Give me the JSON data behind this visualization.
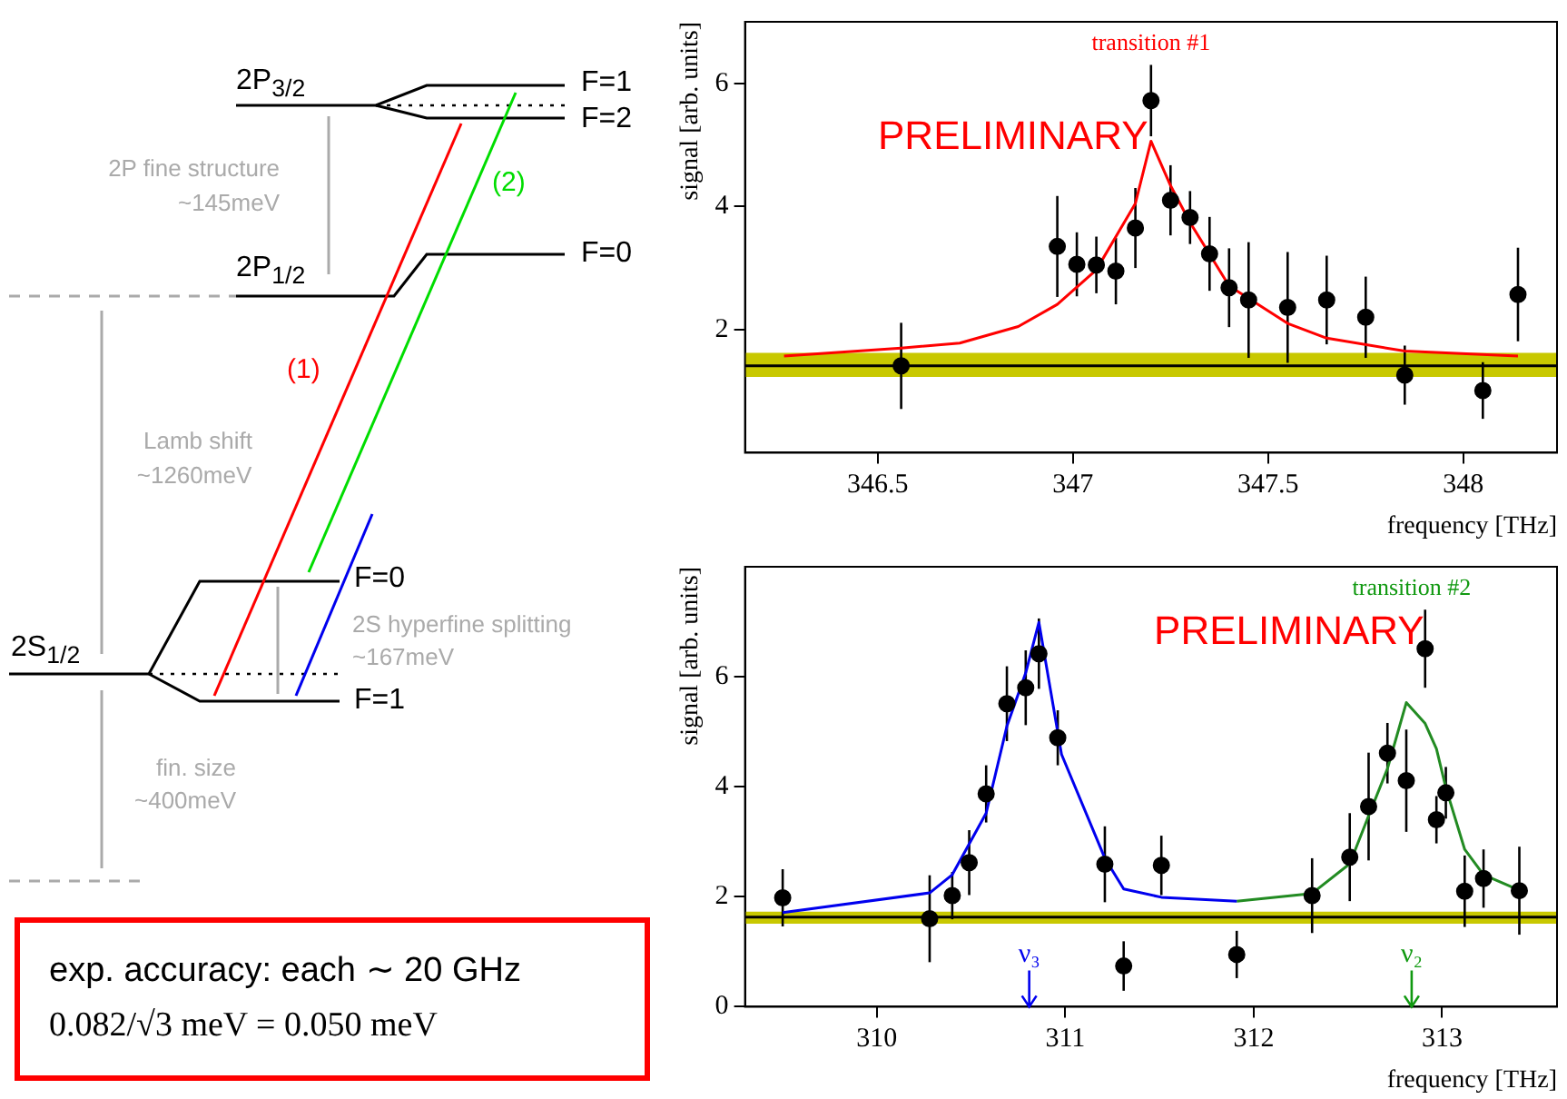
{
  "chart_data": [
    {
      "type": "other",
      "annotations": [
        "2P$_{3/2}$",
        "F=1",
        "F=2",
        "2P fine structure",
        "~145meV",
        "(2)",
        "2P$_{1/2}$",
        "F=0",
        "(1)",
        "Lamb shift",
        "~1260meV",
        "2S$_{1/2}$",
        "F=0",
        "2S hyperfine splitting",
        "~167meV",
        "F=1",
        "fin. size",
        "~400meV"
      ]
    },
    {
      "type": "scatter",
      "xlabel": "frequency [THz]",
      "ylabel": "signal [arb. units]",
      "xlim": [
        346.16,
        348.24
      ],
      "ylim": [
        0,
        7
      ],
      "xticks": [
        346.5,
        347,
        347.5,
        348
      ],
      "yticks": [
        2,
        4,
        6
      ],
      "grid": false,
      "legend": false,
      "annotations": [
        "transition #1",
        "PRELIMINARY"
      ],
      "bands": [
        {
          "axis": "y",
          "from": 1.23,
          "to": 1.62,
          "color": "#c8c800"
        }
      ],
      "ref_lines": [
        {
          "axis": "y",
          "value": 1.41,
          "color": "#000000"
        }
      ],
      "series": [
        {
          "type": "scatter",
          "color": "#000000",
          "marker": "circle",
          "x": [
            346.56,
            346.96,
            347.01,
            347.06,
            347.11,
            347.16,
            347.2,
            347.25,
            347.3,
            347.35,
            347.4,
            347.45,
            347.55,
            347.65,
            347.75,
            347.85,
            348.05,
            348.14
          ],
          "values": [
            1.41,
            3.35,
            3.06,
            3.05,
            2.95,
            3.65,
            5.72,
            4.1,
            3.82,
            3.23,
            2.68,
            2.48,
            2.36,
            2.48,
            2.2,
            1.26,
            1.01,
            2.57
          ],
          "errors": [
            0.7,
            0.82,
            0.52,
            0.46,
            0.54,
            0.65,
            0.58,
            0.57,
            0.43,
            0.6,
            0.64,
            0.94,
            0.9,
            0.72,
            0.66,
            0.48,
            0.46,
            0.76
          ]
        },
        {
          "type": "line",
          "color": "#ff0000",
          "marker": "none",
          "x": [
            346.26,
            346.56,
            346.71,
            346.86,
            346.96,
            347.06,
            347.16,
            347.2,
            347.25,
            347.3,
            347.4,
            347.55,
            347.65,
            347.85,
            348.14
          ],
          "values": [
            1.57,
            1.7,
            1.78,
            2.05,
            2.41,
            2.97,
            4.05,
            5.06,
            4.34,
            3.74,
            2.71,
            2.1,
            1.86,
            1.65,
            1.57
          ]
        }
      ]
    },
    {
      "type": "other",
      "annotations": [
        "exp. accuracy: each ∼ 20 GHz",
        "0.082/√3 meV = 0.050 meV"
      ]
    },
    {
      "type": "scatter",
      "xlabel": "frequency [THz]",
      "ylabel": "signal [arb. units]",
      "xlim": [
        309.3,
        313.61
      ],
      "ylim": [
        0,
        8
      ],
      "xticks": [
        310,
        311,
        312,
        313
      ],
      "yticks": [
        0,
        2,
        4,
        6
      ],
      "grid": false,
      "legend": false,
      "annotations": [
        "transition #2",
        "ν₃",
        "ν₂",
        "PRELIMINARY"
      ],
      "bands": [
        {
          "axis": "y",
          "from": 1.51,
          "to": 1.73,
          "color": "#c8c800"
        }
      ],
      "ref_lines": [
        {
          "axis": "y",
          "value": 1.63,
          "color": "#000000"
        }
      ],
      "series": [
        {
          "type": "scatter",
          "color": "#000000",
          "marker": "circle",
          "x": [
            309.5,
            310.28,
            310.4,
            310.49,
            310.58,
            310.69,
            310.79,
            310.86,
            310.96,
            311.21,
            311.31,
            311.51,
            311.91,
            312.31,
            312.51,
            312.61,
            312.71,
            312.81,
            312.91,
            312.97,
            313.02,
            313.12,
            313.22,
            313.41
          ],
          "values": [
            1.98,
            1.6,
            2.02,
            2.62,
            3.87,
            5.51,
            5.8,
            6.42,
            4.89,
            2.59,
            0.74,
            2.57,
            0.95,
            2.02,
            2.72,
            3.64,
            4.61,
            4.11,
            6.51,
            3.4,
            3.89,
            2.1,
            2.33,
            2.11
          ],
          "errors": [
            0.52,
            0.79,
            0.43,
            0.59,
            0.52,
            0.68,
            0.68,
            0.64,
            0.5,
            0.69,
            0.45,
            0.54,
            0.43,
            0.68,
            0.8,
            0.98,
            0.55,
            0.93,
            0.71,
            0.43,
            0.47,
            0.65,
            0.53,
            0.8
          ]
        },
        {
          "type": "line",
          "color": "#0000ee",
          "marker": "none",
          "x": [
            309.5,
            310.28,
            310.4,
            310.58,
            310.69,
            310.79,
            310.86,
            310.98,
            311.21,
            311.31,
            311.51,
            311.91
          ],
          "values": [
            1.71,
            2.07,
            2.4,
            3.52,
            5.1,
            6.07,
            6.99,
            4.59,
            2.7,
            2.14,
            1.99,
            1.92
          ]
        },
        {
          "type": "line",
          "color": "#228b22",
          "marker": "none",
          "x": [
            311.91,
            312.31,
            312.51,
            312.61,
            312.71,
            312.81,
            312.91,
            312.97,
            313.02,
            313.12,
            313.22,
            313.41
          ],
          "values": [
            1.92,
            2.06,
            2.6,
            3.47,
            4.33,
            5.53,
            5.15,
            4.69,
            3.98,
            2.86,
            2.4,
            2.12
          ]
        }
      ]
    }
  ]
}
